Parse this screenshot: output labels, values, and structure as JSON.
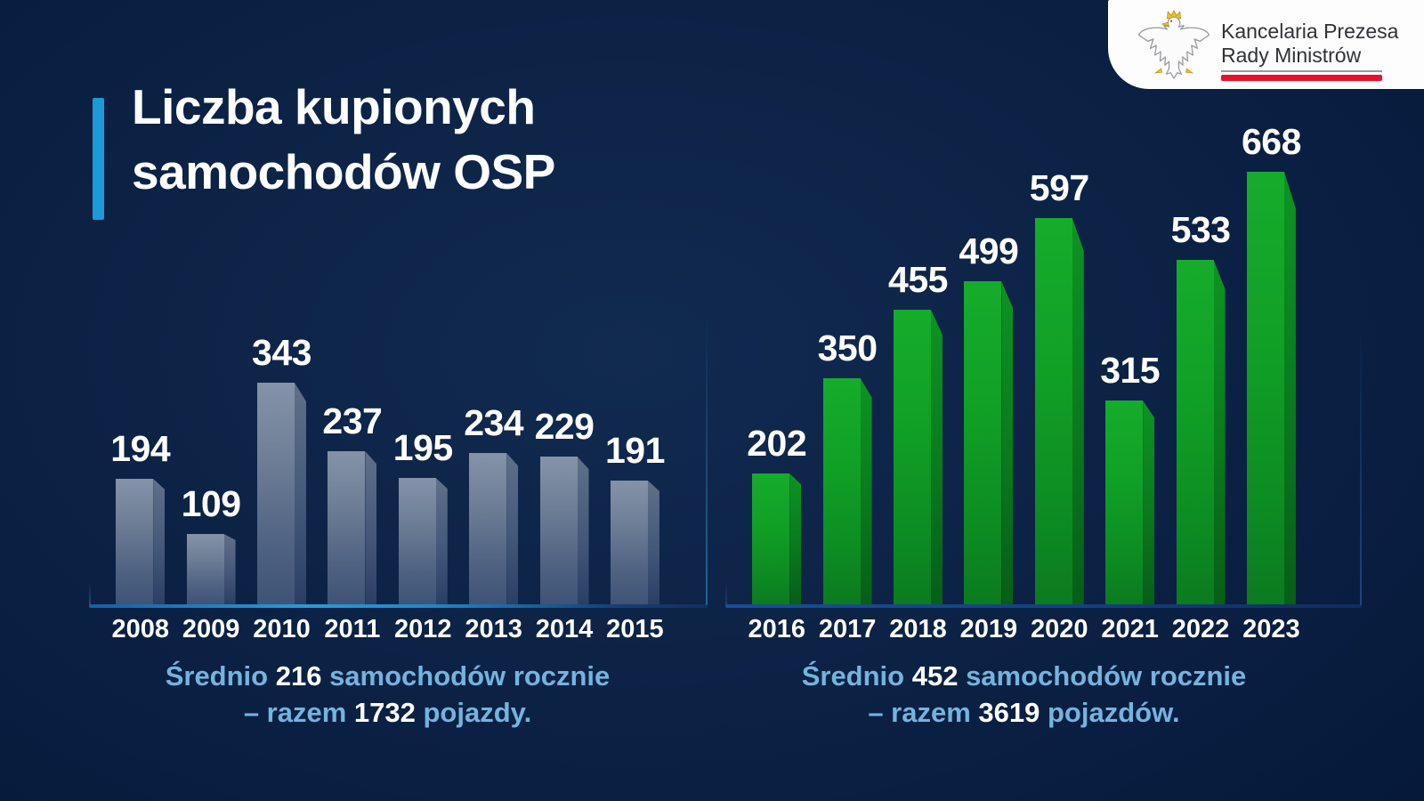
{
  "title": {
    "line1": "Liczba kupionych",
    "line2": "samochodów OSP",
    "accent_color": "#1d9ad6"
  },
  "logo": {
    "org_line1": "Kancelaria Prezesa",
    "org_line2": "Rady Ministrów",
    "eagle_icon": "polish-eagle-emblem",
    "red_underline_color": "#e8112d",
    "gold_color": "#f2c21e",
    "box_color": "#fdfdfd"
  },
  "chart_data": [
    {
      "type": "bar",
      "name": "Samochody OSP 2008-2015",
      "categories": [
        "2008",
        "2009",
        "2010",
        "2011",
        "2012",
        "2013",
        "2014",
        "2015"
      ],
      "values": [
        194,
        109,
        343,
        237,
        195,
        234,
        229,
        191
      ],
      "ylim": [
        0,
        700
      ],
      "grid": false,
      "legend": "none",
      "bar_style": "3d-steel-blue",
      "front_gradient": [
        "#8593a9 0%",
        "#6d7e96 35%",
        "#4e6181 75%",
        "#3f5377 100%"
      ],
      "side_gradient": [
        "#5f7089 0%",
        "#44587a 55%",
        "#2a3f64 100%"
      ],
      "baseline_colors": [
        "#15609f 0%",
        "#2b9bd6 35%",
        "#2187c6 55%",
        "#174076 85%",
        "#132f62 100%"
      ],
      "frame_color": "rgba(62,150,212,0.55)",
      "caption": {
        "text1": "Średnio ",
        "avg": "216",
        "text2": " samochodów rocznie",
        "text3": "– razem ",
        "total": "1732",
        "text4": " pojazdy."
      }
    },
    {
      "type": "bar",
      "name": "Samochody OSP 2016-2023",
      "categories": [
        "2016",
        "2017",
        "2018",
        "2019",
        "2020",
        "2021",
        "2022",
        "2023"
      ],
      "values": [
        202,
        350,
        455,
        499,
        597,
        315,
        533,
        668
      ],
      "ylim": [
        0,
        700
      ],
      "grid": false,
      "legend": "none",
      "bar_style": "3d-green",
      "front_gradient": [
        "#16ac2b 0%",
        "#10a026 40%",
        "#0d8d22 75%",
        "#0b7b20 100%"
      ],
      "side_gradient": [
        "#0c9422 0%",
        "#0a7c1e 50%",
        "#075e18 100%"
      ],
      "baseline_colors": [
        "#1b4e94 0%",
        "#16407e 55%",
        "#112d5e 100%"
      ],
      "frame_color": "rgba(45,95,175,0.6)",
      "caption": {
        "text1": "Średnio ",
        "avg": "452",
        "text2": " samochodów rocznie",
        "text3": "– razem ",
        "total": "3619",
        "text4": " pojazdów."
      }
    }
  ]
}
